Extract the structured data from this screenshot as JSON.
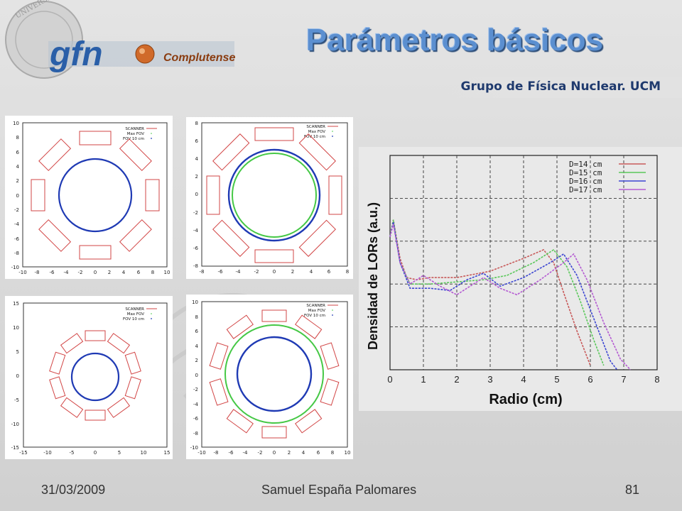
{
  "header": {
    "title": "Parámetros básicos",
    "group": "Grupo de Física Nuclear. UCM",
    "logo": {
      "text": "gfn",
      "sub": "Complutense",
      "seal_text": "UNIVERSITAS · MATRITENSIS"
    }
  },
  "footer": {
    "date": "31/03/2009",
    "author": "Samuel España Palomares",
    "page": "81"
  },
  "legend": {
    "scanner": "SCANNER",
    "maxfov": "Max FOV",
    "fov10": "FOV 10 cm"
  },
  "colors": {
    "scanner": "#d24545",
    "maxfov": "#45c845",
    "fov10": "#1f3ab4",
    "title": "#5b8fd0",
    "d14": "#c85a5a",
    "d15": "#5ac85a",
    "d16": "#3c46d2",
    "d17": "#b45ad2"
  },
  "panels": [
    {
      "ticks_y": [
        "10",
        "8",
        "6",
        "4",
        "2",
        "0",
        "-2",
        "-4",
        "-6",
        "-8",
        "-10"
      ],
      "ticks_x": [
        "-10",
        "-8",
        "-6",
        "-4",
        "-2",
        "0",
        "2",
        "4",
        "6",
        "8",
        "10"
      ]
    },
    {
      "ticks_y": [
        "8",
        "6",
        "4",
        "2",
        "0",
        "-2",
        "-4",
        "-6",
        "-8"
      ],
      "ticks_x": [
        "-8",
        "-6",
        "-4",
        "-2",
        "0",
        "2",
        "4",
        "6",
        "8"
      ]
    },
    {
      "ticks_y": [
        "15",
        "10",
        "5",
        "0",
        "-5",
        "-10",
        "-15"
      ],
      "ticks_x": [
        "-15",
        "-10",
        "-5",
        "0",
        "5",
        "10",
        "15"
      ]
    },
    {
      "ticks_y": [
        "10",
        "8",
        "6",
        "4",
        "2",
        "0",
        "-2",
        "-4",
        "-6",
        "-8",
        "-10"
      ],
      "ticks_x": [
        "-10",
        "-8",
        "-6",
        "-4",
        "-2",
        "0",
        "2",
        "4",
        "6",
        "8",
        "10"
      ]
    }
  ],
  "chart_data": {
    "type": "line",
    "xlabel": "Radio (cm)",
    "ylabel": "Densidad de LORs (a.u.)",
    "xlim": [
      0,
      8
    ],
    "x_ticks": [
      "0",
      "1",
      "2",
      "3",
      "4",
      "5",
      "6",
      "7",
      "8"
    ],
    "grid": true,
    "legend_position": "top-right",
    "series": [
      {
        "name": "D=14  cm",
        "color": "#c85a5a",
        "points": [
          [
            0,
            0.62
          ],
          [
            0.1,
            0.7
          ],
          [
            0.3,
            0.52
          ],
          [
            0.5,
            0.43
          ],
          [
            0.8,
            0.42
          ],
          [
            1.2,
            0.43
          ],
          [
            2,
            0.43
          ],
          [
            3,
            0.46
          ],
          [
            4,
            0.52
          ],
          [
            4.6,
            0.56
          ],
          [
            4.9,
            0.5
          ],
          [
            5.2,
            0.36
          ],
          [
            5.6,
            0.18
          ],
          [
            6.0,
            0.02
          ]
        ]
      },
      {
        "name": "D=15  cm",
        "color": "#5ac85a",
        "points": [
          [
            0,
            0.62
          ],
          [
            0.1,
            0.7
          ],
          [
            0.3,
            0.5
          ],
          [
            0.6,
            0.4
          ],
          [
            1.2,
            0.4
          ],
          [
            2,
            0.41
          ],
          [
            2.8,
            0.42
          ],
          [
            3.5,
            0.44
          ],
          [
            4.3,
            0.5
          ],
          [
            4.9,
            0.56
          ],
          [
            5.3,
            0.48
          ],
          [
            5.7,
            0.32
          ],
          [
            6.1,
            0.14
          ],
          [
            6.4,
            0.02
          ]
        ]
      },
      {
        "name": "D=16  cm",
        "color": "#3c46d2",
        "points": [
          [
            0,
            0.62
          ],
          [
            0.1,
            0.69
          ],
          [
            0.3,
            0.5
          ],
          [
            0.6,
            0.38
          ],
          [
            1.2,
            0.38
          ],
          [
            1.8,
            0.37
          ],
          [
            2.3,
            0.42
          ],
          [
            2.8,
            0.45
          ],
          [
            3.3,
            0.39
          ],
          [
            4,
            0.43
          ],
          [
            4.8,
            0.5
          ],
          [
            5.2,
            0.54
          ],
          [
            5.6,
            0.44
          ],
          [
            6.1,
            0.24
          ],
          [
            6.6,
            0.04
          ],
          [
            6.8,
            0.0
          ]
        ]
      },
      {
        "name": "D=17  cm",
        "color": "#b45ad2",
        "points": [
          [
            0,
            0.62
          ],
          [
            0.1,
            0.68
          ],
          [
            0.3,
            0.5
          ],
          [
            0.6,
            0.4
          ],
          [
            1.0,
            0.44
          ],
          [
            1.5,
            0.39
          ],
          [
            2.0,
            0.35
          ],
          [
            2.5,
            0.4
          ],
          [
            2.8,
            0.43
          ],
          [
            3.3,
            0.38
          ],
          [
            3.8,
            0.35
          ],
          [
            4.5,
            0.42
          ],
          [
            5.2,
            0.5
          ],
          [
            5.5,
            0.54
          ],
          [
            5.9,
            0.42
          ],
          [
            6.4,
            0.22
          ],
          [
            6.9,
            0.05
          ],
          [
            7.2,
            0.0
          ]
        ]
      }
    ]
  }
}
